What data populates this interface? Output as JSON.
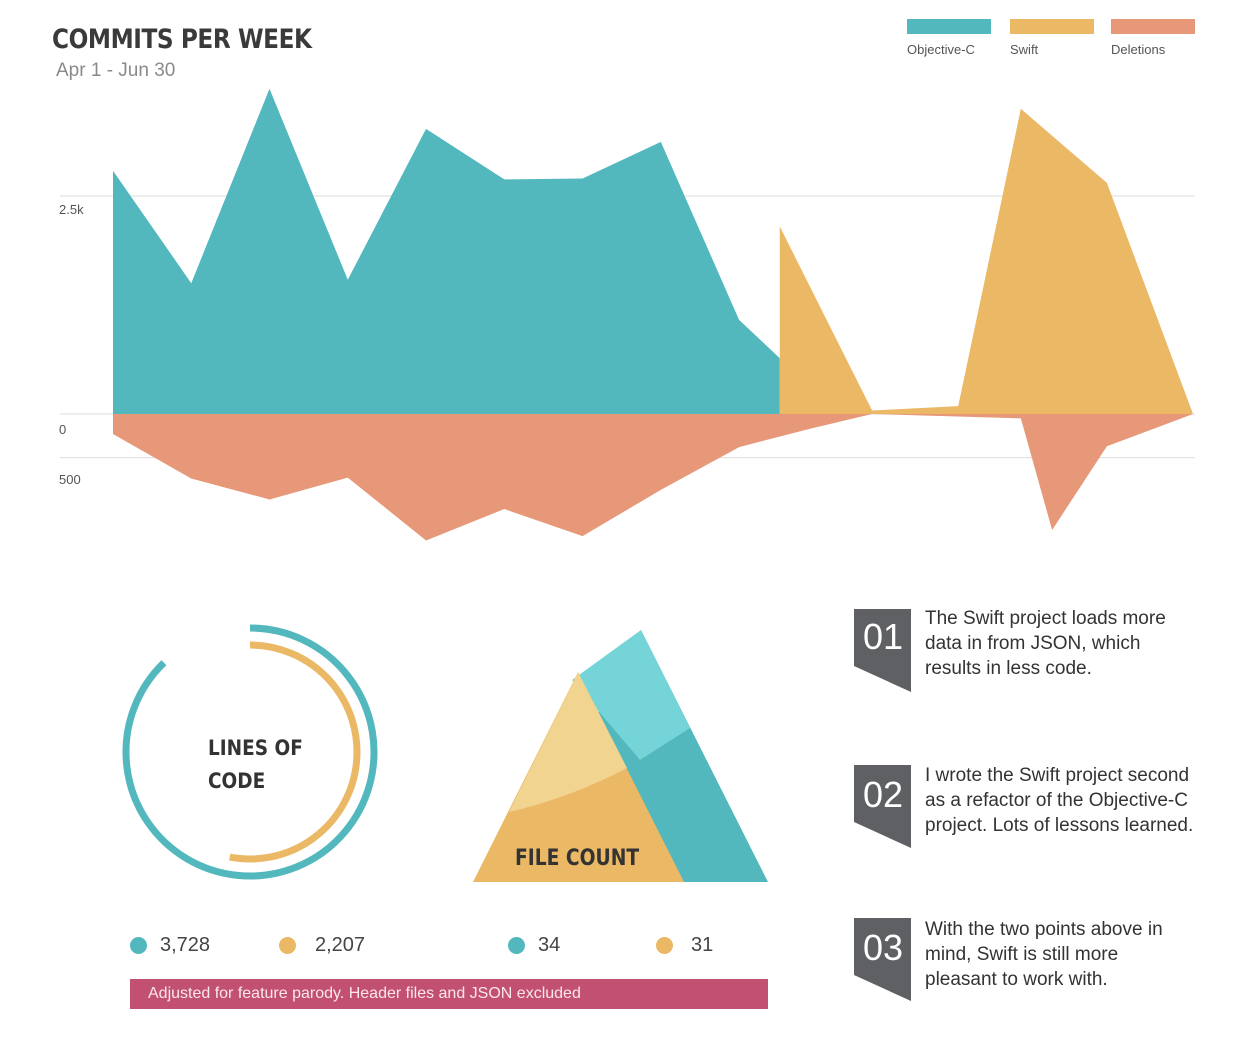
{
  "header": {
    "title": "COMMITS PER WEEK",
    "subtitle": "Apr 1 - Jun 30"
  },
  "legend": [
    {
      "name": "Objective-C",
      "color": "#52b8bd"
    },
    {
      "name": "Swift",
      "color": "#ebb865"
    },
    {
      "name": "Deletions",
      "color": "#e69878"
    }
  ],
  "chart_data": [
    {
      "type": "area",
      "title": "COMMITS PER WEEK",
      "subtitle": "Apr 1 - Jun 30",
      "y_ticks": [
        {
          "label": "2.5k",
          "value": 2500
        },
        {
          "label": "0",
          "value": 0
        },
        {
          "label": "500",
          "value": -500
        }
      ],
      "grid": true,
      "legend_position": "top-right",
      "series": [
        {
          "name": "Objective-C",
          "color": "#52b8bd",
          "points": [
            [
              0,
              2790
            ],
            [
              1,
              1500
            ],
            [
              2,
              3730
            ],
            [
              3,
              1540
            ],
            [
              4,
              3270
            ],
            [
              5,
              2690
            ],
            [
              6,
              2700
            ],
            [
              7,
              3120
            ],
            [
              8,
              1080
            ],
            [
              8.52,
              640
            ]
          ]
        },
        {
          "name": "Swift",
          "color": "#ebb865",
          "points": [
            [
              8.52,
              2150
            ],
            [
              9.7,
              40
            ],
            [
              10.8,
              90
            ],
            [
              11.6,
              3500
            ],
            [
              12.7,
              2650
            ],
            [
              13.8,
              0
            ]
          ]
        },
        {
          "name": "Deletions",
          "color": "#e69878",
          "points": [
            [
              0,
              -230
            ],
            [
              1,
              -740
            ],
            [
              2,
              -980
            ],
            [
              3,
              -730
            ],
            [
              4,
              -1450
            ],
            [
              5,
              -1090
            ],
            [
              6,
              -1400
            ],
            [
              7,
              -870
            ],
            [
              8,
              -380
            ],
            [
              8.9,
              -170
            ],
            [
              9.7,
              0
            ],
            [
              11.6,
              -50
            ],
            [
              12.0,
              -1330
            ],
            [
              12.7,
              -370
            ],
            [
              13.8,
              0
            ]
          ]
        }
      ]
    },
    {
      "type": "radial-bar",
      "title": "LINES OF CODE",
      "series": [
        {
          "name": "Objective-C",
          "value": 3728,
          "label": "3,728",
          "color": "#52b8bd"
        },
        {
          "name": "Swift",
          "value": 2207,
          "label": "2,207",
          "color": "#ebb865"
        }
      ]
    },
    {
      "type": "triangle-area",
      "title": "FILE COUNT",
      "series": [
        {
          "name": "Objective-C",
          "value": 34,
          "label": "34",
          "color": "#52b8bd"
        },
        {
          "name": "Swift",
          "value": 31,
          "label": "31",
          "color": "#ebb865"
        }
      ]
    }
  ],
  "footnote": "Adjusted for feature parody. Header files and JSON excluded",
  "notes": [
    {
      "num": "01",
      "text": "The Swift project loads more data in from JSON, which results in less code."
    },
    {
      "num": "02",
      "text": "I wrote the Swift project second as a refactor of the Objective-C project. Lots of lessons learned."
    },
    {
      "num": "03",
      "text": "With the two points above in mind, Swift is still more pleasant to work with."
    }
  ],
  "colors": {
    "objc": "#52b8bd",
    "swift": "#ebb865",
    "deletions": "#e69878",
    "grid": "#dddddd",
    "badge": "#5f6063",
    "footnote_bg": "#c25171"
  }
}
